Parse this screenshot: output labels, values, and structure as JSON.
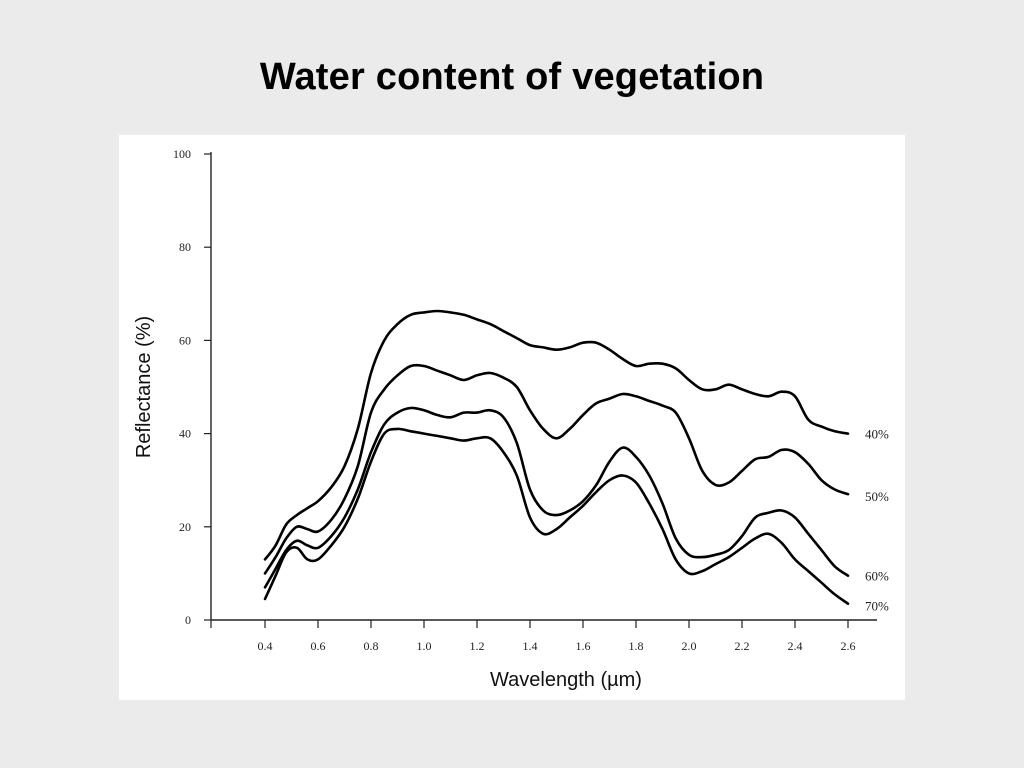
{
  "slide": {
    "title": "Water content of vegetation"
  },
  "chart_data": {
    "type": "line",
    "title": "",
    "xlabel": "Wavelength (µm)",
    "ylabel": "Reflectance (%)",
    "xlim": [
      0.2,
      2.7
    ],
    "ylim": [
      0,
      100
    ],
    "xticks": [
      0.4,
      0.6,
      0.8,
      1.0,
      1.2,
      1.4,
      1.6,
      1.8,
      2.0,
      2.2,
      2.4,
      2.6
    ],
    "xtick_labels": [
      "0.4",
      "0.6",
      "0.8",
      "1.0",
      "1.2",
      "1.4",
      "1.6",
      "1.8",
      "2.0",
      "2.2",
      "2.4",
      "2.6"
    ],
    "yticks": [
      0,
      20,
      40,
      60,
      80,
      100
    ],
    "ytick_labels": [
      "0",
      "20",
      "40",
      "60",
      "80",
      "100"
    ],
    "grid": false,
    "legend": "none",
    "line_color": "#000000",
    "series": [
      {
        "name": "40%",
        "x": [
          0.4,
          0.44,
          0.48,
          0.52,
          0.56,
          0.6,
          0.65,
          0.7,
          0.75,
          0.8,
          0.85,
          0.9,
          0.95,
          1.0,
          1.05,
          1.1,
          1.15,
          1.2,
          1.25,
          1.3,
          1.35,
          1.4,
          1.45,
          1.5,
          1.55,
          1.6,
          1.65,
          1.7,
          1.75,
          1.8,
          1.85,
          1.9,
          1.95,
          2.0,
          2.05,
          2.1,
          2.15,
          2.2,
          2.25,
          2.3,
          2.35,
          2.4,
          2.45,
          2.5,
          2.55,
          2.6
        ],
        "values": [
          13,
          16,
          20.5,
          22.5,
          24,
          25.5,
          28.5,
          33,
          41,
          53,
          60,
          63.5,
          65.5,
          66,
          66.3,
          66,
          65.5,
          64.5,
          63.5,
          62,
          60.5,
          59,
          58.5,
          58,
          58.5,
          59.5,
          59.5,
          58,
          56,
          54.5,
          55,
          55,
          54,
          51.5,
          49.5,
          49.5,
          50.5,
          49.5,
          48.5,
          48,
          49,
          48,
          43,
          41.5,
          40.5,
          40
        ]
      },
      {
        "name": "50%",
        "x": [
          0.4,
          0.44,
          0.48,
          0.52,
          0.56,
          0.6,
          0.65,
          0.7,
          0.75,
          0.8,
          0.85,
          0.9,
          0.95,
          1.0,
          1.05,
          1.1,
          1.15,
          1.2,
          1.25,
          1.3,
          1.35,
          1.4,
          1.45,
          1.5,
          1.55,
          1.6,
          1.65,
          1.7,
          1.75,
          1.8,
          1.85,
          1.9,
          1.95,
          2.0,
          2.05,
          2.1,
          2.15,
          2.2,
          2.25,
          2.3,
          2.35,
          2.4,
          2.45,
          2.5,
          2.55,
          2.6
        ],
        "values": [
          10,
          13.5,
          17.5,
          20,
          19.5,
          19,
          21.5,
          26,
          33,
          44.5,
          49.5,
          52.5,
          54.5,
          54.5,
          53.5,
          52.5,
          51.5,
          52.5,
          53,
          52,
          50,
          45,
          41,
          39,
          41,
          44,
          46.5,
          47.5,
          48.5,
          48,
          47,
          46,
          44.5,
          39,
          32,
          29,
          29.5,
          32,
          34.5,
          35,
          36.5,
          36,
          33.5,
          30,
          28,
          27
        ]
      },
      {
        "name": "60%",
        "x": [
          0.4,
          0.44,
          0.48,
          0.52,
          0.56,
          0.6,
          0.65,
          0.7,
          0.75,
          0.8,
          0.85,
          0.9,
          0.95,
          1.0,
          1.05,
          1.1,
          1.15,
          1.2,
          1.25,
          1.3,
          1.35,
          1.4,
          1.45,
          1.5,
          1.55,
          1.6,
          1.65,
          1.7,
          1.75,
          1.8,
          1.85,
          1.9,
          1.95,
          2.0,
          2.05,
          2.1,
          2.15,
          2.2,
          2.25,
          2.3,
          2.35,
          2.4,
          2.45,
          2.5,
          2.55,
          2.6
        ],
        "values": [
          7,
          11,
          15,
          17,
          16,
          15.5,
          18,
          22,
          28,
          36,
          42,
          44.5,
          45.5,
          45,
          44,
          43.5,
          44.5,
          44.5,
          45,
          43.5,
          38,
          28,
          23.5,
          22.5,
          23.5,
          25.5,
          29,
          34,
          37,
          35,
          31,
          25,
          17.5,
          14,
          13.5,
          14,
          15,
          18,
          22,
          23,
          23.5,
          22,
          18.5,
          15,
          11.5,
          9.5
        ]
      },
      {
        "name": "70%",
        "x": [
          0.4,
          0.44,
          0.48,
          0.52,
          0.56,
          0.6,
          0.65,
          0.7,
          0.75,
          0.8,
          0.85,
          0.9,
          0.95,
          1.0,
          1.05,
          1.1,
          1.15,
          1.2,
          1.25,
          1.3,
          1.35,
          1.4,
          1.45,
          1.5,
          1.55,
          1.6,
          1.65,
          1.7,
          1.75,
          1.8,
          1.85,
          1.9,
          1.95,
          2.0,
          2.05,
          2.1,
          2.15,
          2.2,
          2.25,
          2.3,
          2.35,
          2.4,
          2.45,
          2.5,
          2.55,
          2.6
        ],
        "values": [
          4.5,
          9.5,
          14.5,
          15.5,
          13,
          13,
          16,
          20,
          26,
          34,
          40,
          41,
          40.5,
          40,
          39.5,
          39,
          38.5,
          39,
          39,
          36,
          31,
          22,
          18.5,
          19.5,
          22,
          24.5,
          27.5,
          30,
          31,
          29.5,
          25,
          19.5,
          13,
          10,
          10.5,
          12,
          13.5,
          15.5,
          17.5,
          18.5,
          16.5,
          13,
          10.5,
          8,
          5.5,
          3.5
        ]
      }
    ]
  }
}
